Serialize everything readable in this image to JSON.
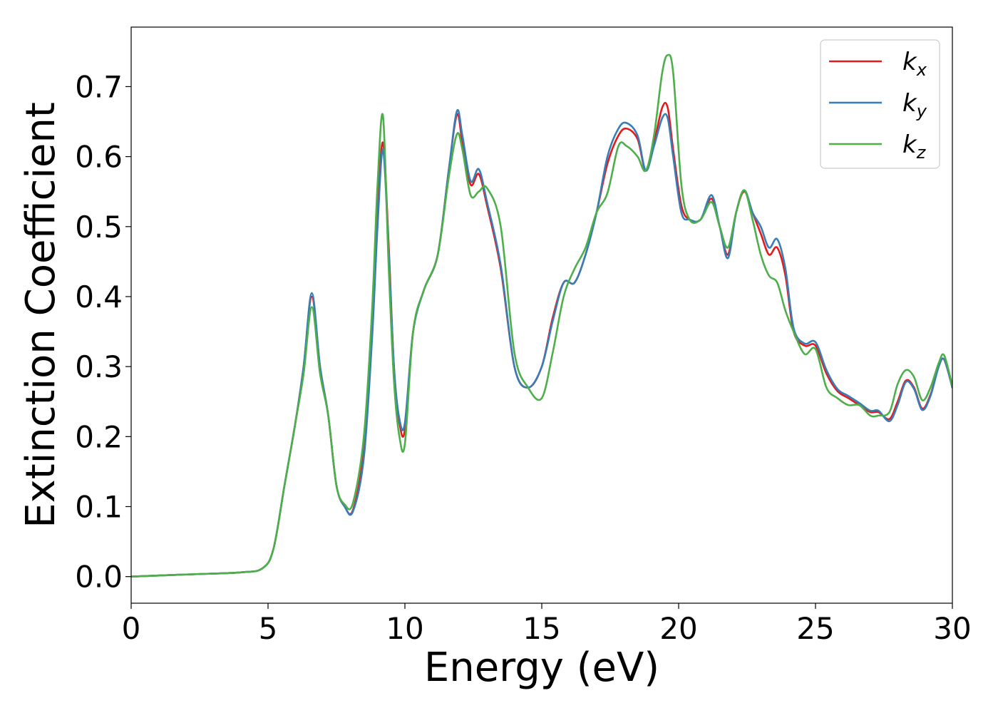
{
  "chart_data": {
    "type": "line",
    "xlabel": "Energy (eV)",
    "ylabel": "Extinction Coefficient",
    "xlim": [
      0,
      30
    ],
    "ylim": [
      -0.038,
      0.785
    ],
    "xticks": [
      0,
      5,
      10,
      15,
      20,
      25,
      30
    ],
    "xtick_labels": [
      "0",
      "5",
      "10",
      "15",
      "20",
      "25",
      "30"
    ],
    "yticks": [
      0.0,
      0.1,
      0.2,
      0.3,
      0.4,
      0.5,
      0.6,
      0.7
    ],
    "ytick_labels": [
      "0.0",
      "0.1",
      "0.2",
      "0.3",
      "0.4",
      "0.5",
      "0.6",
      "0.7"
    ],
    "grid": false,
    "legend_position": "top-right",
    "series": [
      {
        "name": "k",
        "subscript": "x",
        "color": "#e41a1c",
        "x": [
          0,
          2,
          4,
          4.8,
          5.2,
          5.6,
          6.0,
          6.3,
          6.6,
          6.9,
          7.2,
          7.5,
          7.8,
          8.1,
          8.5,
          8.8,
          9.0,
          9.2,
          9.4,
          9.6,
          9.8,
          10.0,
          10.3,
          10.7,
          11.2,
          11.6,
          11.9,
          12.1,
          12.4,
          12.7,
          13.0,
          13.5,
          14.0,
          14.5,
          15.0,
          15.4,
          15.8,
          16.2,
          16.6,
          17.0,
          17.4,
          17.8,
          18.1,
          18.5,
          18.8,
          19.1,
          19.4,
          19.6,
          19.8,
          20.1,
          20.4,
          20.8,
          21.2,
          21.5,
          21.8,
          22.1,
          22.4,
          22.7,
          23.0,
          23.3,
          23.6,
          23.9,
          24.2,
          24.6,
          25.0,
          25.4,
          25.8,
          26.2,
          26.6,
          27.0,
          27.3,
          27.7,
          28.0,
          28.3,
          28.6,
          28.9,
          29.2,
          29.5,
          29.7,
          30.0
        ],
        "y": [
          0.0,
          0.003,
          0.006,
          0.012,
          0.04,
          0.13,
          0.22,
          0.3,
          0.4,
          0.3,
          0.23,
          0.13,
          0.1,
          0.095,
          0.18,
          0.35,
          0.52,
          0.62,
          0.48,
          0.3,
          0.22,
          0.21,
          0.35,
          0.41,
          0.46,
          0.58,
          0.66,
          0.62,
          0.56,
          0.575,
          0.53,
          0.44,
          0.3,
          0.27,
          0.3,
          0.37,
          0.42,
          0.42,
          0.46,
          0.52,
          0.59,
          0.63,
          0.64,
          0.625,
          0.58,
          0.62,
          0.67,
          0.67,
          0.61,
          0.53,
          0.51,
          0.51,
          0.54,
          0.5,
          0.46,
          0.52,
          0.55,
          0.52,
          0.49,
          0.46,
          0.47,
          0.43,
          0.35,
          0.33,
          0.33,
          0.29,
          0.265,
          0.255,
          0.245,
          0.235,
          0.235,
          0.225,
          0.25,
          0.28,
          0.27,
          0.24,
          0.26,
          0.3,
          0.31,
          0.27
        ]
      },
      {
        "name": "k",
        "subscript": "y",
        "color": "#377eb8",
        "x": [
          0,
          2,
          4,
          4.8,
          5.2,
          5.6,
          6.0,
          6.3,
          6.6,
          6.9,
          7.2,
          7.5,
          7.8,
          8.1,
          8.5,
          8.8,
          9.0,
          9.2,
          9.4,
          9.6,
          9.8,
          10.0,
          10.3,
          10.7,
          11.2,
          11.6,
          11.9,
          12.1,
          12.4,
          12.7,
          13.0,
          13.5,
          14.0,
          14.5,
          15.0,
          15.4,
          15.8,
          16.2,
          16.6,
          17.0,
          17.4,
          17.8,
          18.1,
          18.5,
          18.8,
          19.1,
          19.4,
          19.6,
          19.8,
          20.1,
          20.4,
          20.8,
          21.2,
          21.5,
          21.8,
          22.1,
          22.4,
          22.7,
          23.0,
          23.3,
          23.6,
          23.9,
          24.2,
          24.6,
          25.0,
          25.4,
          25.8,
          26.2,
          26.6,
          27.0,
          27.3,
          27.7,
          28.0,
          28.3,
          28.6,
          28.9,
          29.2,
          29.5,
          29.7,
          30.0
        ],
        "y": [
          0.0,
          0.003,
          0.006,
          0.012,
          0.04,
          0.13,
          0.22,
          0.3,
          0.405,
          0.3,
          0.23,
          0.13,
          0.1,
          0.093,
          0.17,
          0.34,
          0.5,
          0.61,
          0.47,
          0.3,
          0.225,
          0.22,
          0.35,
          0.41,
          0.46,
          0.58,
          0.665,
          0.63,
          0.565,
          0.582,
          0.535,
          0.445,
          0.3,
          0.27,
          0.3,
          0.365,
          0.42,
          0.42,
          0.46,
          0.52,
          0.6,
          0.64,
          0.648,
          0.63,
          0.58,
          0.615,
          0.655,
          0.655,
          0.6,
          0.52,
          0.51,
          0.51,
          0.545,
          0.5,
          0.455,
          0.52,
          0.552,
          0.52,
          0.5,
          0.47,
          0.482,
          0.44,
          0.355,
          0.333,
          0.335,
          0.295,
          0.268,
          0.258,
          0.248,
          0.237,
          0.237,
          0.222,
          0.245,
          0.278,
          0.268,
          0.238,
          0.258,
          0.3,
          0.31,
          0.27
        ]
      },
      {
        "name": "k",
        "subscript": "z",
        "color": "#4daf4a",
        "x": [
          0,
          2,
          4,
          4.8,
          5.2,
          5.6,
          6.0,
          6.3,
          6.6,
          6.9,
          7.2,
          7.5,
          7.8,
          8.1,
          8.5,
          8.8,
          9.0,
          9.2,
          9.4,
          9.6,
          9.8,
          10.0,
          10.3,
          10.7,
          11.2,
          11.6,
          11.9,
          12.1,
          12.4,
          12.7,
          13.0,
          13.5,
          14.0,
          14.5,
          15.0,
          15.4,
          15.8,
          16.2,
          16.6,
          17.0,
          17.4,
          17.8,
          18.1,
          18.5,
          18.8,
          19.1,
          19.4,
          19.6,
          19.8,
          20.1,
          20.4,
          20.8,
          21.2,
          21.5,
          21.8,
          22.1,
          22.4,
          22.7,
          23.0,
          23.3,
          23.6,
          23.9,
          24.2,
          24.6,
          25.0,
          25.4,
          25.8,
          26.2,
          26.6,
          27.0,
          27.3,
          27.7,
          28.0,
          28.3,
          28.6,
          28.9,
          29.2,
          29.5,
          29.7,
          30.0
        ],
        "y": [
          0.0,
          0.003,
          0.006,
          0.012,
          0.04,
          0.13,
          0.22,
          0.29,
          0.385,
          0.29,
          0.23,
          0.13,
          0.103,
          0.105,
          0.2,
          0.38,
          0.56,
          0.658,
          0.45,
          0.28,
          0.2,
          0.19,
          0.35,
          0.41,
          0.46,
          0.57,
          0.632,
          0.61,
          0.545,
          0.55,
          0.555,
          0.5,
          0.32,
          0.27,
          0.255,
          0.32,
          0.4,
          0.44,
          0.47,
          0.52,
          0.548,
          0.615,
          0.615,
          0.6,
          0.58,
          0.63,
          0.72,
          0.745,
          0.72,
          0.56,
          0.51,
          0.51,
          0.535,
          0.5,
          0.47,
          0.52,
          0.552,
          0.51,
          0.46,
          0.43,
          0.42,
          0.38,
          0.35,
          0.318,
          0.325,
          0.27,
          0.255,
          0.245,
          0.245,
          0.23,
          0.23,
          0.235,
          0.275,
          0.295,
          0.285,
          0.252,
          0.27,
          0.305,
          0.316,
          0.272
        ]
      }
    ]
  }
}
